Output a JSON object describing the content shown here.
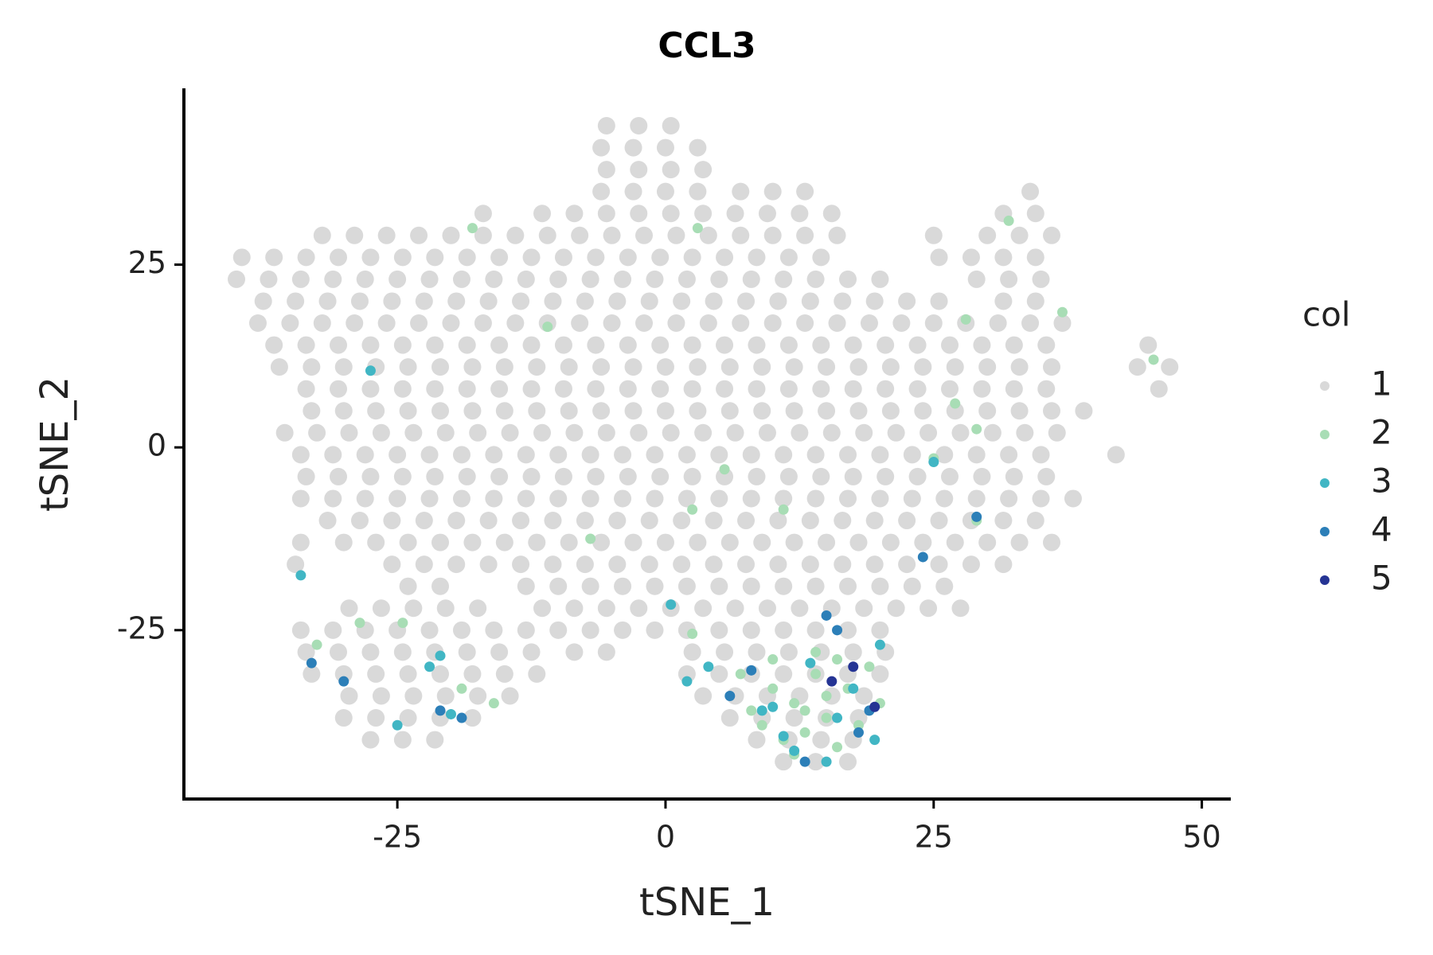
{
  "chart_data": {
    "type": "scatter",
    "title": "CCL3",
    "x_label": "tSNE_1",
    "y_label": "tSNE_2",
    "xlim": [
      -44.9,
      52.7
    ],
    "ylim": [
      -48.1,
      48.9
    ],
    "xticks": [
      -25,
      0,
      25,
      50
    ],
    "yticks": [
      -25,
      0,
      25
    ],
    "grid": false,
    "legend": "right",
    "legend_title": "col",
    "series": [
      {
        "name": "1",
        "color": "#d9d9d9",
        "x": [
          -5.5,
          -2.5,
          0.5,
          -6,
          -3,
          0,
          3,
          -5.5,
          -2.5,
          0.5,
          3.5,
          -6,
          -3,
          0,
          3,
          7,
          10,
          13,
          34,
          -17,
          -11.5,
          -8.5,
          -5.5,
          -2.5,
          0.5,
          3.5,
          6.5,
          9.5,
          12.5,
          15.5,
          31.5,
          34.5,
          -32,
          -29,
          -26,
          -23,
          -20,
          -17,
          -14,
          -11,
          -8,
          -5,
          -2,
          1,
          4,
          7,
          10,
          13,
          16,
          25,
          30,
          33,
          36,
          -39.5,
          -36.5,
          -33.5,
          -30.5,
          -27.5,
          -24.5,
          -21.5,
          -18.5,
          -15.5,
          -12.5,
          -9.5,
          -6.5,
          -3.5,
          -0.5,
          2.5,
          5.5,
          8.5,
          11.5,
          14.5,
          25.5,
          28.5,
          31.5,
          34.5,
          -40,
          -37,
          -34,
          -31,
          -28,
          -25,
          -22,
          -19,
          -16,
          -13,
          -10,
          -7,
          -4,
          -1,
          2,
          5,
          8,
          11,
          14,
          17,
          20,
          29,
          32,
          35,
          -37.5,
          -34.5,
          -31.5,
          -28.5,
          -25.5,
          -22.5,
          -19.5,
          -16.5,
          -13.5,
          -10.5,
          -7.5,
          -4.5,
          -1.5,
          1.5,
          4.5,
          7.5,
          10.5,
          13.5,
          16.5,
          19.5,
          22.5,
          25.5,
          31.5,
          34.5,
          -38,
          -35,
          -32,
          -29,
          -26,
          -23,
          -20,
          -17,
          -14,
          -11,
          -8,
          -5,
          -2,
          1,
          4,
          7,
          10,
          13,
          16,
          19,
          22,
          25,
          28,
          31,
          34,
          37,
          -36.5,
          -33.5,
          -30.5,
          -27.5,
          -24.5,
          -21.5,
          -18.5,
          -15.5,
          -12.5,
          -9.5,
          -6.5,
          -3.5,
          -0.5,
          2.5,
          5.5,
          8.5,
          11.5,
          14.5,
          17.5,
          20.5,
          23.5,
          26.5,
          29.5,
          32.5,
          35.5,
          45,
          -36,
          -33,
          -30,
          -27,
          -24,
          -21,
          -18,
          -15,
          -12,
          -9,
          -6,
          -3,
          0,
          3,
          6,
          9,
          12,
          15,
          18,
          21,
          24,
          27,
          30,
          33,
          36,
          44,
          47,
          -33.5,
          -30.5,
          -27.5,
          -24.5,
          -21.5,
          -18.5,
          -15.5,
          -12.5,
          -9.5,
          -6.5,
          -3.5,
          -0.5,
          2.5,
          5.5,
          8.5,
          11.5,
          14.5,
          17.5,
          20.5,
          23.5,
          26.5,
          29.5,
          32.5,
          35.5,
          46,
          -33,
          -30,
          -27,
          -24,
          -21,
          -18,
          -15,
          -12,
          -9,
          -6,
          -3,
          0,
          3,
          6,
          9,
          12,
          15,
          18,
          21,
          24,
          27,
          30,
          33,
          36,
          39,
          -35.5,
          -32.5,
          -29.5,
          -26.5,
          -23.5,
          -20.5,
          -17.5,
          -14.5,
          -11.5,
          -8.5,
          -5.5,
          -2.5,
          0.5,
          3.5,
          6.5,
          9.5,
          12.5,
          15.5,
          18.5,
          21.5,
          24.5,
          27.5,
          30.5,
          33.5,
          36.5,
          -34,
          -31,
          -28,
          -25,
          -22,
          -19,
          -16,
          -13,
          -10,
          -7,
          -4,
          -1,
          2,
          5,
          8,
          11,
          14,
          17,
          20,
          23,
          26,
          29,
          32,
          35,
          42,
          -33.5,
          -30.5,
          -27.5,
          -24.5,
          -21.5,
          -18.5,
          -15.5,
          -12.5,
          -9.5,
          -6.5,
          -3.5,
          -0.5,
          2.5,
          5.5,
          8.5,
          11.5,
          14.5,
          17.5,
          20.5,
          23.5,
          26.5,
          29.5,
          32.5,
          35.5,
          -34,
          -31,
          -28,
          -25,
          -22,
          -19,
          -16,
          -13,
          -10,
          -7,
          -4,
          -1,
          2,
          5,
          8,
          11,
          14,
          17,
          20,
          23,
          26,
          29,
          32,
          35,
          38,
          -31.5,
          -28.5,
          -25.5,
          -22.5,
          -19.5,
          -16.5,
          -13.5,
          -10.5,
          -7.5,
          -4.5,
          -1.5,
          1.5,
          4.5,
          7.5,
          10.5,
          13.5,
          16.5,
          19.5,
          22.5,
          25.5,
          28.5,
          31.5,
          34.5,
          -34,
          -30,
          -27,
          -24,
          -21,
          -18,
          -15,
          -12,
          -9,
          -6,
          -3,
          0,
          3,
          6,
          9,
          12,
          15,
          18,
          21,
          24,
          27,
          30,
          33,
          36,
          -34.5,
          -25.5,
          -22.5,
          -19.5,
          -16.5,
          -13.5,
          -10.5,
          -7.5,
          -4.5,
          -1.5,
          1.5,
          4.5,
          7.5,
          10.5,
          13.5,
          16.5,
          19.5,
          22.5,
          25.5,
          28.5,
          31.5,
          -24,
          -21,
          -13,
          -10,
          -7,
          -4,
          -1,
          2,
          5,
          8,
          11,
          14,
          17,
          20,
          23,
          26,
          -29.5,
          -26.5,
          -23.5,
          -20.5,
          -17.5,
          -11.5,
          -8.5,
          -5.5,
          -2.5,
          0.5,
          3.5,
          6.5,
          9.5,
          12.5,
          15.5,
          18.5,
          21.5,
          24.5,
          27.5,
          -34,
          -31,
          -28,
          -25,
          -22,
          -19,
          -16,
          -13,
          -10,
          -7,
          -4,
          -1,
          2,
          5,
          8,
          11,
          14,
          17,
          20,
          -33.5,
          -30.5,
          -27.5,
          -24.5,
          -21.5,
          -18.5,
          -15.5,
          -12.5,
          -8.5,
          -5.5,
          2.5,
          5.5,
          8.5,
          11.5,
          14.5,
          17.5,
          20.5,
          -33,
          -30,
          -27,
          -24,
          -21,
          -18,
          -15,
          -12,
          2,
          5,
          8,
          11,
          14,
          17,
          20,
          -29.5,
          -26.5,
          -23.5,
          -20.5,
          -17.5,
          -14.5,
          3.5,
          6.5,
          9.5,
          12.5,
          15.5,
          18.5,
          -30,
          -27,
          -24,
          -21,
          -18,
          6,
          9,
          12,
          15,
          18,
          -27.5,
          -24.5,
          -21.5,
          8.5,
          11.5,
          14.5,
          17.5,
          11,
          14,
          17
        ],
        "values": [
          44,
          44,
          44,
          41,
          41,
          41,
          41,
          38,
          38,
          38,
          38,
          35,
          35,
          35,
          35,
          35,
          35,
          35,
          35,
          32,
          32,
          32,
          32,
          32,
          32,
          32,
          32,
          32,
          32,
          32,
          32,
          32,
          29,
          29,
          29,
          29,
          29,
          29,
          29,
          29,
          29,
          29,
          29,
          29,
          29,
          29,
          29,
          29,
          29,
          29,
          29,
          29,
          29,
          26,
          26,
          26,
          26,
          26,
          26,
          26,
          26,
          26,
          26,
          26,
          26,
          26,
          26,
          26,
          26,
          26,
          26,
          26,
          26,
          26,
          26,
          26,
          23,
          23,
          23,
          23,
          23,
          23,
          23,
          23,
          23,
          23,
          23,
          23,
          23,
          23,
          23,
          23,
          23,
          23,
          23,
          23,
          23,
          23,
          23,
          23,
          20,
          20,
          20,
          20,
          20,
          20,
          20,
          20,
          20,
          20,
          20,
          20,
          20,
          20,
          20,
          20,
          20,
          20,
          20,
          20,
          20,
          20,
          20,
          20,
          17,
          17,
          17,
          17,
          17,
          17,
          17,
          17,
          17,
          17,
          17,
          17,
          17,
          17,
          17,
          17,
          17,
          17,
          17,
          17,
          17,
          17,
          17,
          17,
          17,
          17,
          14,
          14,
          14,
          14,
          14,
          14,
          14,
          14,
          14,
          14,
          14,
          14,
          14,
          14,
          14,
          14,
          14,
          14,
          14,
          14,
          14,
          14,
          14,
          14,
          14,
          14,
          11,
          11,
          11,
          11,
          11,
          11,
          11,
          11,
          11,
          11,
          11,
          11,
          11,
          11,
          11,
          11,
          11,
          11,
          11,
          11,
          11,
          11,
          11,
          11,
          11,
          11,
          11,
          8,
          8,
          8,
          8,
          8,
          8,
          8,
          8,
          8,
          8,
          8,
          8,
          8,
          8,
          8,
          8,
          8,
          8,
          8,
          8,
          8,
          8,
          8,
          8,
          8,
          5,
          5,
          5,
          5,
          5,
          5,
          5,
          5,
          5,
          5,
          5,
          5,
          5,
          5,
          5,
          5,
          5,
          5,
          5,
          5,
          5,
          5,
          5,
          5,
          5,
          2,
          2,
          2,
          2,
          2,
          2,
          2,
          2,
          2,
          2,
          2,
          2,
          2,
          2,
          2,
          2,
          2,
          2,
          2,
          2,
          2,
          2,
          2,
          2,
          2,
          -1,
          -1,
          -1,
          -1,
          -1,
          -1,
          -1,
          -1,
          -1,
          -1,
          -1,
          -1,
          -1,
          -1,
          -1,
          -1,
          -1,
          -1,
          -1,
          -1,
          -1,
          -1,
          -1,
          -1,
          -1,
          -4,
          -4,
          -4,
          -4,
          -4,
          -4,
          -4,
          -4,
          -4,
          -4,
          -4,
          -4,
          -4,
          -4,
          -4,
          -4,
          -4,
          -4,
          -4,
          -4,
          -4,
          -4,
          -4,
          -4,
          -7,
          -7,
          -7,
          -7,
          -7,
          -7,
          -7,
          -7,
          -7,
          -7,
          -7,
          -7,
          -7,
          -7,
          -7,
          -7,
          -7,
          -7,
          -7,
          -7,
          -7,
          -7,
          -7,
          -7,
          -7,
          -10,
          -10,
          -10,
          -10,
          -10,
          -10,
          -10,
          -10,
          -10,
          -10,
          -10,
          -10,
          -10,
          -10,
          -10,
          -10,
          -10,
          -10,
          -10,
          -10,
          -10,
          -10,
          -10,
          -13,
          -13,
          -13,
          -13,
          -13,
          -13,
          -13,
          -13,
          -13,
          -13,
          -13,
          -13,
          -13,
          -13,
          -13,
          -13,
          -13,
          -13,
          -13,
          -13,
          -13,
          -13,
          -13,
          -13,
          -16,
          -16,
          -16,
          -16,
          -16,
          -16,
          -16,
          -16,
          -16,
          -16,
          -16,
          -16,
          -16,
          -16,
          -16,
          -16,
          -16,
          -16,
          -16,
          -16,
          -16,
          -19,
          -19,
          -19,
          -19,
          -19,
          -19,
          -19,
          -19,
          -19,
          -19,
          -19,
          -19,
          -19,
          -19,
          -19,
          -19,
          -22,
          -22,
          -22,
          -22,
          -22,
          -22,
          -22,
          -22,
          -22,
          -22,
          -22,
          -22,
          -22,
          -22,
          -22,
          -22,
          -22,
          -22,
          -22,
          -25,
          -25,
          -25,
          -25,
          -25,
          -25,
          -25,
          -25,
          -25,
          -25,
          -25,
          -25,
          -25,
          -25,
          -25,
          -25,
          -25,
          -25,
          -25,
          -28,
          -28,
          -28,
          -28,
          -28,
          -28,
          -28,
          -28,
          -28,
          -28,
          -28,
          -28,
          -28,
          -28,
          -28,
          -28,
          -28,
          -31,
          -31,
          -31,
          -31,
          -31,
          -31,
          -31,
          -31,
          -31,
          -31,
          -31,
          -31,
          -31,
          -31,
          -31,
          -34,
          -34,
          -34,
          -34,
          -34,
          -34,
          -34,
          -34,
          -34,
          -34,
          -34,
          -34,
          -37,
          -37,
          -37,
          -37,
          -37,
          -37,
          -37,
          -37,
          -37,
          -37,
          -40,
          -40,
          -40,
          -40,
          -40,
          -40,
          -40,
          -43,
          -43,
          -43
        ]
      },
      {
        "name": "2",
        "color": "#a8ddb5",
        "x": [
          -18,
          3,
          -11,
          28,
          37,
          32,
          27,
          29,
          25,
          5.5,
          11,
          2.5,
          -7,
          29,
          -28.5,
          -32.5,
          -24.5,
          -16,
          -19,
          10,
          12,
          14,
          15,
          17,
          13,
          16,
          9,
          11,
          18,
          14,
          8,
          19,
          12,
          16,
          20,
          7,
          10,
          15,
          13,
          2.5,
          45.5
        ],
        "values": [
          30,
          30,
          16.5,
          17.5,
          18.5,
          31,
          6,
          2.5,
          -1.5,
          -3,
          -8.5,
          -8.5,
          -12.5,
          -10,
          -24,
          -27,
          -24,
          -35,
          -33,
          -33,
          -35,
          -31,
          -37,
          -33,
          -39,
          -41,
          -38,
          -40,
          -38,
          -28,
          -36,
          -30,
          -42,
          -29,
          -35,
          -31,
          -29,
          -34,
          -36,
          -25.5,
          12
        ]
      },
      {
        "name": "3",
        "color": "#41b6c4",
        "x": [
          -27.5,
          -34,
          -22,
          -21,
          -25,
          -20,
          25,
          2,
          10,
          11,
          13.5,
          17.5,
          15,
          12,
          20,
          19.5,
          9,
          4,
          0.5,
          16
        ],
        "values": [
          10.5,
          -17.5,
          -30,
          -28.5,
          -38,
          -36.5,
          -2,
          -32,
          -35.5,
          -39.5,
          -29.5,
          -33,
          -43,
          -41.5,
          -27,
          -40,
          -36,
          -30,
          -21.5,
          -37
        ]
      },
      {
        "name": "4",
        "color": "#2c7fb8",
        "x": [
          -21,
          -19,
          6,
          16,
          19,
          13,
          18,
          8,
          24,
          29,
          15,
          -33,
          -30
        ],
        "values": [
          -36,
          -37,
          -34,
          -25,
          -36,
          -43,
          -39,
          -30.5,
          -15,
          -9.5,
          -23,
          -29.5,
          -32
        ]
      },
      {
        "name": "5",
        "color": "#253494",
        "x": [
          17.5,
          19.5,
          15.5
        ],
        "values": [
          -30,
          -35.5,
          -32
        ]
      }
    ]
  }
}
